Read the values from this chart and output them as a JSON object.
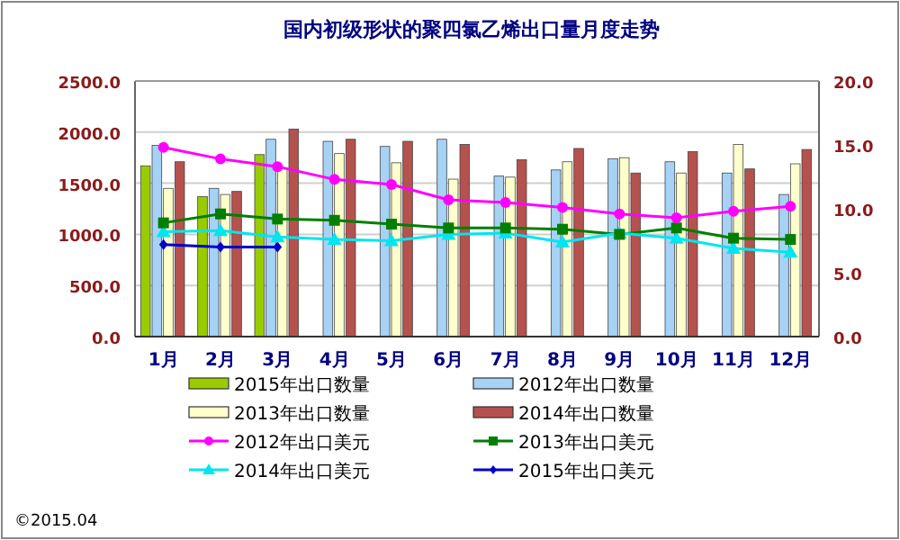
{
  "chart_data": {
    "type": "bar",
    "title": "国内初级形状的聚四氯乙烯出口量月度走势",
    "categories": [
      "1月",
      "2月",
      "3月",
      "4月",
      "5月",
      "6月",
      "7月",
      "8月",
      "9月",
      "10月",
      "11月",
      "12月"
    ],
    "series": [
      {
        "name": "2015年出口数量",
        "color": "#99cc00",
        "values": [
          1670,
          1370,
          1780,
          null,
          null,
          null,
          null,
          null,
          null,
          null,
          null,
          null
        ]
      },
      {
        "name": "2012年出口数量",
        "color": "#a6d2f5",
        "values": [
          1870,
          1450,
          1930,
          1910,
          1860,
          1930,
          1570,
          1630,
          1740,
          1710,
          1600,
          1390
        ]
      },
      {
        "name": "2013年出口数量",
        "color": "#ffffcc",
        "values": [
          1450,
          1390,
          1650,
          1790,
          1700,
          1540,
          1560,
          1710,
          1750,
          1600,
          1880,
          1690
        ]
      },
      {
        "name": "2014年出口数量",
        "color": "#b5524d",
        "values": [
          1710,
          1420,
          2030,
          1930,
          1910,
          1880,
          1730,
          1840,
          1600,
          1810,
          1640,
          1830
        ]
      },
      {
        "name": "2012年出口美元",
        "type": "line",
        "axis": "y2",
        "marker": "circle",
        "color": "#ff00ff",
        "values": [
          14.8,
          13.9,
          13.3,
          12.3,
          11.9,
          10.7,
          10.5,
          10.1,
          9.6,
          9.3,
          9.8,
          10.2
        ]
      },
      {
        "name": "2013年出口美元",
        "type": "line",
        "axis": "y2",
        "marker": "square",
        "color": "#007f00",
        "values": [
          8.9,
          9.6,
          9.2,
          9.1,
          8.8,
          8.5,
          8.5,
          8.4,
          8.0,
          8.5,
          7.7,
          7.6
        ]
      },
      {
        "name": "2014年出口美元",
        "type": "line",
        "axis": "y2",
        "marker": "triangle",
        "color": "#00e5ee",
        "values": [
          8.2,
          8.3,
          7.8,
          7.6,
          7.5,
          8.0,
          8.1,
          7.4,
          8.1,
          7.7,
          6.9,
          6.6
        ]
      },
      {
        "name": "2015年出口美元",
        "type": "line",
        "axis": "y2",
        "marker": "diamond",
        "color": "#0000cc",
        "values": [
          7.2,
          7.0,
          7.0,
          null,
          null,
          null,
          null,
          null,
          null,
          null,
          null,
          null
        ]
      }
    ],
    "ylim": [
      0,
      2500
    ],
    "yticks": [
      {
        "value": 0,
        "label": "0.0"
      },
      {
        "value": 500,
        "label": "500.0"
      },
      {
        "value": 1000,
        "label": "1000.0"
      },
      {
        "value": 1500,
        "label": "1500.0"
      },
      {
        "value": 2000,
        "label": "2000.0"
      },
      {
        "value": 2500,
        "label": "2500.0"
      }
    ],
    "y2lim": [
      0,
      20
    ],
    "y2ticks": [
      {
        "value": 0,
        "label": "0.0"
      },
      {
        "value": 5,
        "label": "5.0"
      },
      {
        "value": 10,
        "label": "10.0"
      },
      {
        "value": 15,
        "label": "15.0"
      },
      {
        "value": 20,
        "label": "20.0"
      }
    ],
    "grid": "y",
    "legend": "bottom",
    "annotations": [
      "©2015.04"
    ]
  }
}
